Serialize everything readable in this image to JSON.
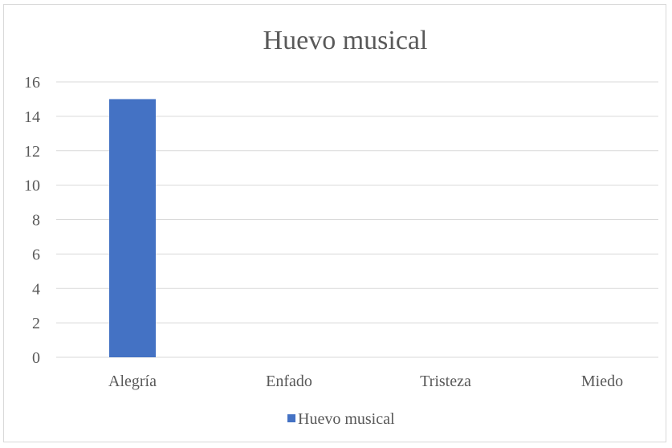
{
  "chart_data": {
    "type": "bar",
    "title": "Huevo musical",
    "categories": [
      "Alegría",
      "Enfado",
      "Tristeza",
      "Miedo"
    ],
    "series": [
      {
        "name": "Huevo musical",
        "values": [
          15,
          0,
          0,
          0
        ],
        "color": "#4472c4"
      }
    ],
    "ylim": [
      0,
      16
    ],
    "yticks": [
      0,
      2,
      4,
      6,
      8,
      10,
      12,
      14,
      16
    ],
    "grid": true,
    "legend_position": "bottom"
  }
}
